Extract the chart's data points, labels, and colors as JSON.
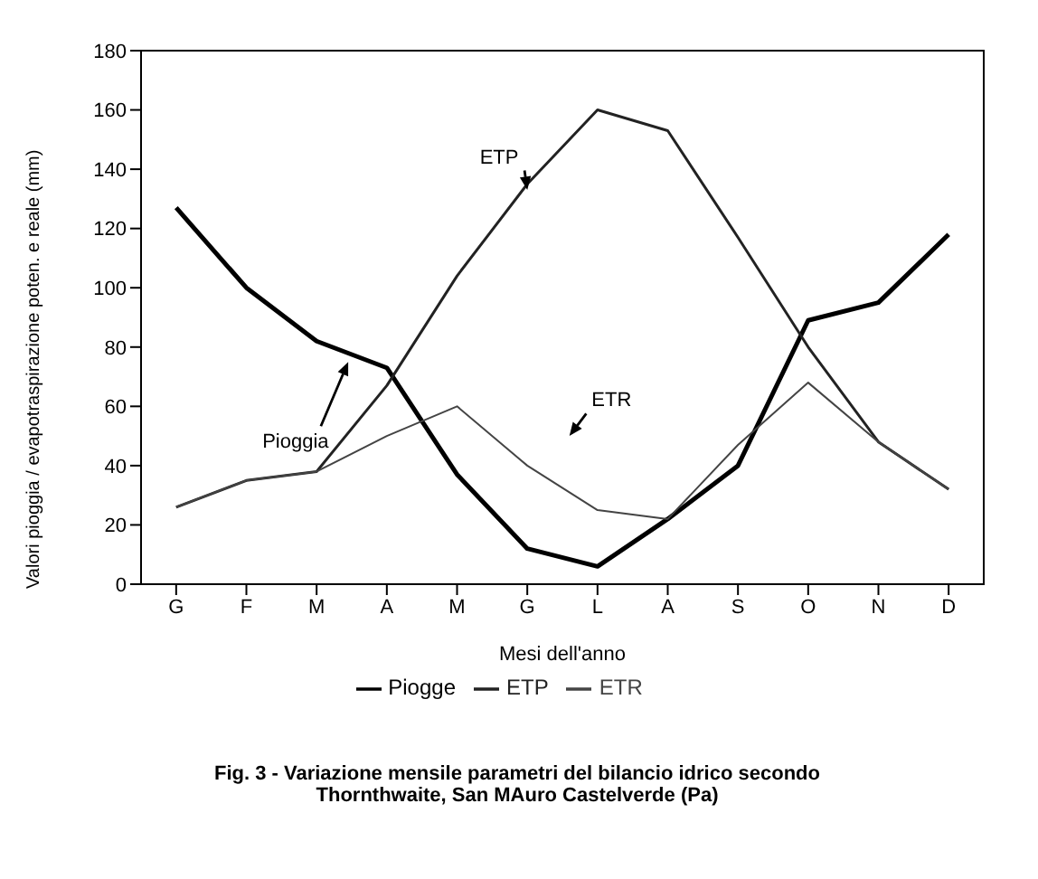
{
  "chart_data": {
    "type": "line",
    "xlabel": "Mesi dell'anno",
    "ylabel": "Valori pioggia / evapotraspirazione poten. e reale (mm)",
    "categories": [
      "G",
      "F",
      "M",
      "A",
      "M",
      "G",
      "L",
      "A",
      "S",
      "O",
      "N",
      "D"
    ],
    "series": [
      {
        "name": "Piogge",
        "color": "#000000",
        "values": [
          127,
          100,
          82,
          73,
          37,
          12,
          6,
          22,
          40,
          89,
          95,
          118
        ]
      },
      {
        "name": "ETP",
        "color": "#222222",
        "values": [
          26,
          35,
          38,
          67,
          104,
          135,
          160,
          153,
          117,
          80,
          48,
          32
        ]
      },
      {
        "name": "ETR",
        "color": "#444444",
        "values": [
          26,
          35,
          38,
          50,
          60,
          40,
          25,
          22,
          47,
          68,
          48,
          32
        ]
      }
    ],
    "ylim": [
      0,
      180
    ],
    "yticks": [
      0,
      20,
      40,
      60,
      80,
      100,
      120,
      140,
      160,
      180
    ],
    "grid": false,
    "legend": "bottom",
    "marker": "none",
    "line_style": "solid",
    "annotations": [
      "ETP",
      "ETR",
      "Pioggia",
      "Fig. 3 - Variazione mensile parametri del bilancio idrico secondo Thornthwaite, San MAuro Castelverde (Pa)"
    ]
  }
}
